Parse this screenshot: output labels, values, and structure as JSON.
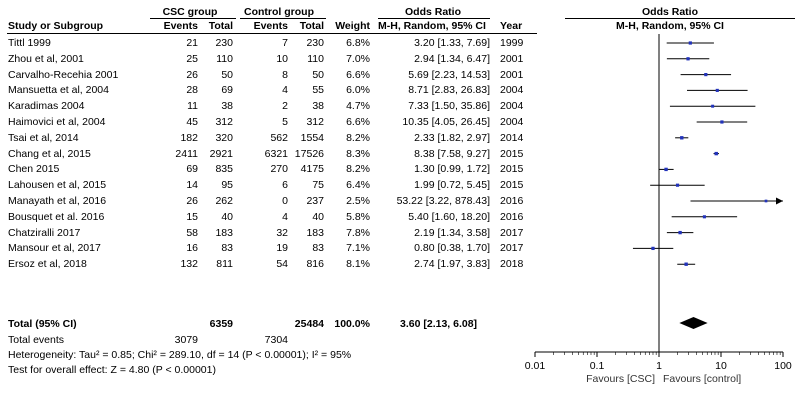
{
  "header": {
    "group1": "CSC group",
    "group2": "Control group",
    "effect_title": "Odds Ratio",
    "plot_title": "Odds Ratio",
    "col_study": "Study or Subgroup",
    "col_events1": "Events",
    "col_total1": "Total",
    "col_events2": "Events",
    "col_total2": "Total",
    "col_weight": "Weight",
    "col_method": "M-H, Random, 95% CI",
    "col_year": "Year",
    "plot_method": "M-H, Random, 95% CI"
  },
  "studies": [
    {
      "name": "Tittl 1999",
      "e1": "21",
      "n1": "230",
      "e2": "7",
      "n2": "230",
      "weight": "6.8%",
      "ci": "3.20 [1.33, 7.69]",
      "year": "1999"
    },
    {
      "name": "Zhou et al, 2001",
      "e1": "25",
      "n1": "110",
      "e2": "10",
      "n2": "110",
      "weight": "7.0%",
      "ci": "2.94 [1.34, 6.47]",
      "year": "2001"
    },
    {
      "name": "Carvalho-Recehia 2001",
      "e1": "26",
      "n1": "50",
      "e2": "8",
      "n2": "50",
      "weight": "6.6%",
      "ci": "5.69 [2.23, 14.53]",
      "year": "2001"
    },
    {
      "name": "Mansuetta et al, 2004",
      "e1": "28",
      "n1": "69",
      "e2": "4",
      "n2": "55",
      "weight": "6.0%",
      "ci": "8.71 [2.83, 26.83]",
      "year": "2004"
    },
    {
      "name": "Karadimas 2004",
      "e1": "11",
      "n1": "38",
      "e2": "2",
      "n2": "38",
      "weight": "4.7%",
      "ci": "7.33 [1.50, 35.86]",
      "year": "2004"
    },
    {
      "name": "Haimovici et al, 2004",
      "e1": "45",
      "n1": "312",
      "e2": "5",
      "n2": "312",
      "weight": "6.6%",
      "ci": "10.35 [4.05, 26.45]",
      "year": "2004"
    },
    {
      "name": "Tsai et al, 2014",
      "e1": "182",
      "n1": "320",
      "e2": "562",
      "n2": "1554",
      "weight": "8.2%",
      "ci": "2.33 [1.82, 2.97]",
      "year": "2014"
    },
    {
      "name": "Chang et al, 2015",
      "e1": "2411",
      "n1": "2921",
      "e2": "6321",
      "n2": "17526",
      "weight": "8.3%",
      "ci": "8.38 [7.58, 9.27]",
      "year": "2015"
    },
    {
      "name": "Chen 2015",
      "e1": "69",
      "n1": "835",
      "e2": "270",
      "n2": "4175",
      "weight": "8.2%",
      "ci": "1.30 [0.99, 1.72]",
      "year": "2015"
    },
    {
      "name": "Lahousen et al, 2015",
      "e1": "14",
      "n1": "95",
      "e2": "6",
      "n2": "75",
      "weight": "6.4%",
      "ci": "1.99 [0.72, 5.45]",
      "year": "2015"
    },
    {
      "name": "Manayath et al, 2016",
      "e1": "26",
      "n1": "262",
      "e2": "0",
      "n2": "237",
      "weight": "2.5%",
      "ci": "53.22 [3.22, 878.43]",
      "year": "2016"
    },
    {
      "name": "Bousquet et al. 2016",
      "e1": "15",
      "n1": "40",
      "e2": "4",
      "n2": "40",
      "weight": "5.8%",
      "ci": "5.40 [1.60, 18.20]",
      "year": "2016"
    },
    {
      "name": "Chatziralli 2017",
      "e1": "58",
      "n1": "183",
      "e2": "32",
      "n2": "183",
      "weight": "7.8%",
      "ci": "2.19 [1.34, 3.58]",
      "year": "2017"
    },
    {
      "name": "Mansour et al, 2017",
      "e1": "16",
      "n1": "83",
      "e2": "19",
      "n2": "83",
      "weight": "7.1%",
      "ci": "0.80 [0.38, 1.70]",
      "year": "2017"
    },
    {
      "name": "Ersoz et al, 2018",
      "e1": "132",
      "n1": "811",
      "e2": "54",
      "n2": "816",
      "weight": "8.1%",
      "ci": "2.74 [1.97, 3.83]",
      "year": "2018"
    }
  ],
  "total": {
    "label": "Total (95% CI)",
    "n1": "6359",
    "n2": "25484",
    "weight": "100.0%",
    "ci": "3.60 [2.13, 6.08]",
    "events_label": "Total events",
    "e1": "3079",
    "e2": "7304"
  },
  "footer": {
    "heterogeneity": "Heterogeneity: Tau² = 0.85; Chi² = 289.10, df = 14 (P < 0.00001); I² = 95%",
    "overall": "Test for overall effect: Z = 4.80 (P < 0.00001)"
  },
  "chart_data": {
    "type": "forest",
    "x_scale": "log",
    "xlim": [
      0.01,
      100
    ],
    "x_ticks": [
      "0.01",
      "0.1",
      "1",
      "10",
      "100"
    ],
    "x_tick_values": [
      0.01,
      0.1,
      1,
      10,
      100
    ],
    "favours_left": "Favours [CSC]",
    "favours_right": "Favours [control]",
    "null_line": 1,
    "study_color": "#2233bb",
    "points": [
      {
        "or": 3.2,
        "lo": 1.33,
        "hi": 7.69,
        "weight": 6.8
      },
      {
        "or": 2.94,
        "lo": 1.34,
        "hi": 6.47,
        "weight": 7.0
      },
      {
        "or": 5.69,
        "lo": 2.23,
        "hi": 14.53,
        "weight": 6.6
      },
      {
        "or": 8.71,
        "lo": 2.83,
        "hi": 26.83,
        "weight": 6.0
      },
      {
        "or": 7.33,
        "lo": 1.5,
        "hi": 35.86,
        "weight": 4.7
      },
      {
        "or": 10.35,
        "lo": 4.05,
        "hi": 26.45,
        "weight": 6.6
      },
      {
        "or": 2.33,
        "lo": 1.82,
        "hi": 2.97,
        "weight": 8.2
      },
      {
        "or": 8.38,
        "lo": 7.58,
        "hi": 9.27,
        "weight": 8.3
      },
      {
        "or": 1.3,
        "lo": 0.99,
        "hi": 1.72,
        "weight": 8.2
      },
      {
        "or": 1.99,
        "lo": 0.72,
        "hi": 5.45,
        "weight": 6.4
      },
      {
        "or": 53.22,
        "lo": 3.22,
        "hi": 878.43,
        "weight": 2.5
      },
      {
        "or": 5.4,
        "lo": 1.6,
        "hi": 18.2,
        "weight": 5.8
      },
      {
        "or": 2.19,
        "lo": 1.34,
        "hi": 3.58,
        "weight": 7.8
      },
      {
        "or": 0.8,
        "lo": 0.38,
        "hi": 1.7,
        "weight": 7.1
      },
      {
        "or": 2.74,
        "lo": 1.97,
        "hi": 3.83,
        "weight": 8.1
      }
    ],
    "pooled": {
      "or": 3.6,
      "lo": 2.13,
      "hi": 6.08
    }
  }
}
